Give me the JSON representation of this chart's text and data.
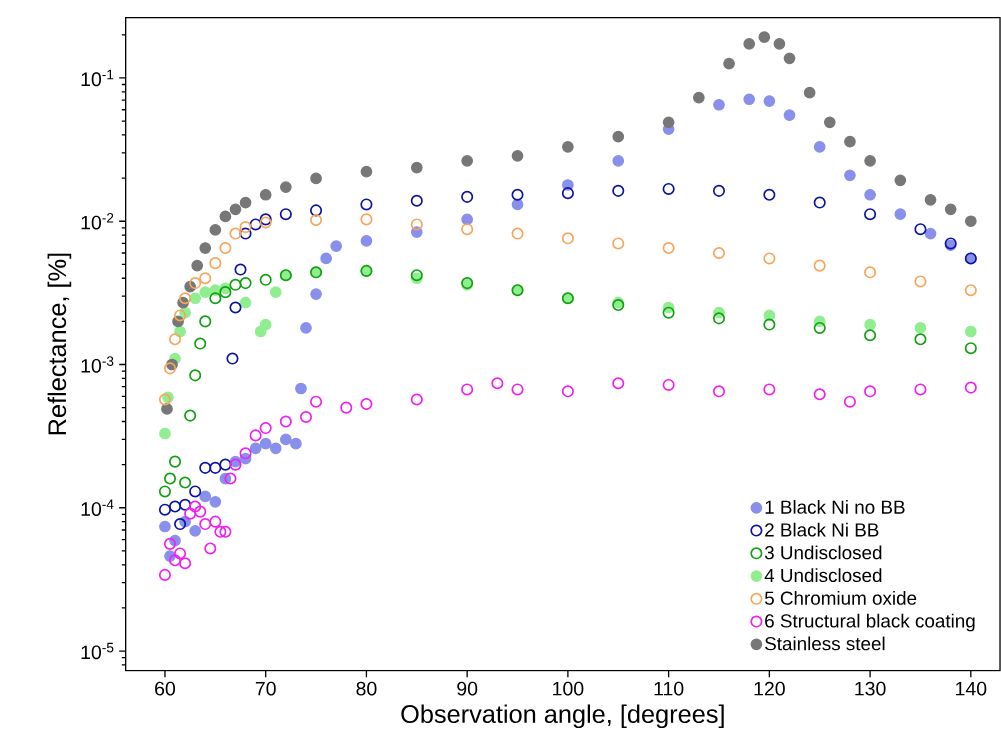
{
  "chart_data": {
    "type": "scatter",
    "xlabel": "Observation angle, [degrees]",
    "ylabel": "Reflectance, [%]",
    "log": "y",
    "grid": false,
    "legend": "bottom right",
    "xlim": [
      56.1,
      142.9
    ],
    "xticks": [
      60,
      70,
      80,
      90,
      100,
      110,
      120,
      130,
      140
    ],
    "ylim": [
      7.3e-06,
      0.264
    ],
    "yticks": [
      {
        "value": 1e-05,
        "label": "10$^{-5}$"
      },
      {
        "value": 0.0001,
        "label": "10$^{-4}$"
      },
      {
        "value": 0.001,
        "label": "10$^{-3}$"
      },
      {
        "value": 0.01,
        "label": "10$^{-2}$"
      },
      {
        "value": 0.1,
        "label": "10$^{-1}$"
      }
    ],
    "series": [
      {
        "name": "1 Black Ni no BB",
        "color": "#8890ec",
        "marker": "circle",
        "x": [
          60,
          60.5,
          61,
          62,
          63,
          64,
          65,
          66,
          67,
          68,
          69,
          70,
          71,
          72,
          73,
          73.5,
          74,
          75,
          76,
          77,
          80,
          85,
          90,
          95,
          100,
          105,
          110,
          115,
          118,
          120,
          122,
          125,
          128,
          130,
          133,
          136,
          138,
          140
        ],
        "values": [
          7.4e-05,
          4.6e-05,
          5.9e-05,
          8e-05,
          6.9e-05,
          0.00012,
          0.00011,
          0.00016,
          0.00021,
          0.00022,
          0.00026,
          0.00028,
          0.00026,
          0.0003,
          0.00028,
          0.00068,
          0.0018,
          0.0031,
          0.0055,
          0.0067,
          0.0073,
          0.0084,
          0.0103,
          0.0131,
          0.0179,
          0.0264,
          0.044,
          0.065,
          0.071,
          0.069,
          0.055,
          0.033,
          0.0209,
          0.0153,
          0.0112,
          0.0082,
          0.0068,
          0.0055
        ]
      },
      {
        "name": "2 Black Ni BB",
        "color": "#0a14a0",
        "marker": "open circle",
        "x": [
          60,
          61,
          61.5,
          62,
          63,
          64,
          65,
          66,
          66.7,
          67,
          67.5,
          68,
          69,
          70,
          72,
          75,
          80,
          85,
          90,
          95,
          100,
          105,
          110,
          115,
          120,
          125,
          130,
          135,
          138,
          140
        ],
        "values": [
          9.7e-05,
          0.000102,
          7.7e-05,
          0.000105,
          0.00013,
          0.00019,
          0.00019,
          0.0002,
          0.0011,
          0.0025,
          0.0046,
          0.0082,
          0.0095,
          0.0103,
          0.0112,
          0.0119,
          0.0131,
          0.0139,
          0.0148,
          0.0153,
          0.0157,
          0.0163,
          0.0168,
          0.0163,
          0.0153,
          0.0135,
          0.0112,
          0.0088,
          0.007,
          0.0055
        ]
      },
      {
        "name": "3 Undisclosed",
        "color": "#10a010",
        "marker": "open circle",
        "x": [
          60,
          60.5,
          61,
          62,
          62.5,
          63,
          63.5,
          64,
          65,
          66,
          67,
          68,
          70,
          72,
          75,
          80,
          85,
          90,
          95,
          100,
          105,
          110,
          115,
          120,
          125,
          130,
          135,
          140
        ],
        "values": [
          0.00013,
          0.00016,
          0.00021,
          0.00015,
          0.00044,
          0.00084,
          0.0014,
          0.002,
          0.0029,
          0.0032,
          0.0036,
          0.0037,
          0.0039,
          0.0042,
          0.0044,
          0.0045,
          0.0042,
          0.0037,
          0.0033,
          0.0029,
          0.0026,
          0.0023,
          0.0021,
          0.0019,
          0.0018,
          0.0016,
          0.0015,
          0.0013
        ]
      },
      {
        "name": "4 Undisclosed",
        "color": "#90ee90",
        "marker": "circle",
        "x": [
          60,
          60.3,
          61,
          61.5,
          62,
          63,
          64,
          65,
          66,
          68,
          69.5,
          70,
          71,
          72,
          75,
          80,
          85,
          90,
          95,
          100,
          105,
          110,
          115,
          120,
          125,
          130,
          135,
          140
        ],
        "values": [
          0.00033,
          0.00059,
          0.0011,
          0.0017,
          0.0023,
          0.0029,
          0.0032,
          0.0033,
          0.0034,
          0.0027,
          0.0017,
          0.0019,
          0.0032,
          0.0042,
          0.0044,
          0.0045,
          0.004,
          0.0036,
          0.0033,
          0.0029,
          0.0027,
          0.0025,
          0.0023,
          0.0022,
          0.002,
          0.0019,
          0.0018,
          0.0017
        ]
      },
      {
        "name": "5 Chromium oxide",
        "color": "#f7a55a",
        "marker": "open circle",
        "x": [
          60,
          60.5,
          61,
          61.5,
          62,
          63,
          64,
          65,
          66,
          67,
          68,
          70,
          75,
          80,
          85,
          90,
          95,
          100,
          105,
          110,
          115,
          120,
          125,
          130,
          135,
          140
        ],
        "values": [
          0.00057,
          0.00094,
          0.0015,
          0.0022,
          0.0029,
          0.0037,
          0.004,
          0.0051,
          0.0065,
          0.0082,
          0.0091,
          0.0098,
          0.0102,
          0.0103,
          0.0095,
          0.0088,
          0.0082,
          0.0076,
          0.007,
          0.0065,
          0.006,
          0.0055,
          0.0049,
          0.0044,
          0.0038,
          0.0033
        ]
      },
      {
        "name": "6 Structural black coating",
        "color": "#f020f0",
        "marker": "open circle",
        "x": [
          60,
          60.5,
          61,
          61.5,
          62,
          62.5,
          63,
          63.5,
          64,
          64.5,
          65,
          65.5,
          66,
          66.5,
          67,
          68,
          69,
          70,
          72,
          74,
          75,
          78,
          80,
          85,
          90,
          93,
          95,
          100,
          105,
          110,
          115,
          120,
          125,
          128,
          130,
          135,
          140
        ],
        "values": [
          3.4e-05,
          5.6e-05,
          4.3e-05,
          4.8e-05,
          4.1e-05,
          9.1e-05,
          0.000102,
          9.4e-05,
          7.7e-05,
          5.2e-05,
          8e-05,
          6.8e-05,
          6.8e-05,
          0.00016,
          0.0002,
          0.00024,
          0.00032,
          0.00036,
          0.0004,
          0.00043,
          0.00055,
          0.0005,
          0.00053,
          0.00057,
          0.00067,
          0.00074,
          0.00067,
          0.00065,
          0.00074,
          0.00072,
          0.00065,
          0.00067,
          0.00062,
          0.00055,
          0.00065,
          0.00067,
          0.00069
        ]
      },
      {
        "name": "Stainless steel",
        "color": "#777777",
        "marker": "circle",
        "x": [
          60.2,
          60.7,
          61.3,
          61.8,
          62.5,
          63.2,
          64,
          65,
          66,
          67,
          68,
          70,
          72,
          75,
          80,
          85,
          90,
          95,
          100,
          105,
          110,
          113,
          116,
          118,
          119.5,
          121,
          122,
          124,
          126,
          128,
          130,
          133,
          136,
          138,
          140
        ],
        "values": [
          0.00049,
          0.001,
          0.002,
          0.0027,
          0.0035,
          0.0049,
          0.0065,
          0.0087,
          0.0108,
          0.0121,
          0.0135,
          0.0153,
          0.0173,
          0.0199,
          0.0222,
          0.0237,
          0.0264,
          0.0286,
          0.033,
          0.039,
          0.049,
          0.073,
          0.126,
          0.173,
          0.193,
          0.173,
          0.137,
          0.079,
          0.049,
          0.036,
          0.0264,
          0.0193,
          0.0141,
          0.0121,
          0.01
        ]
      }
    ]
  }
}
